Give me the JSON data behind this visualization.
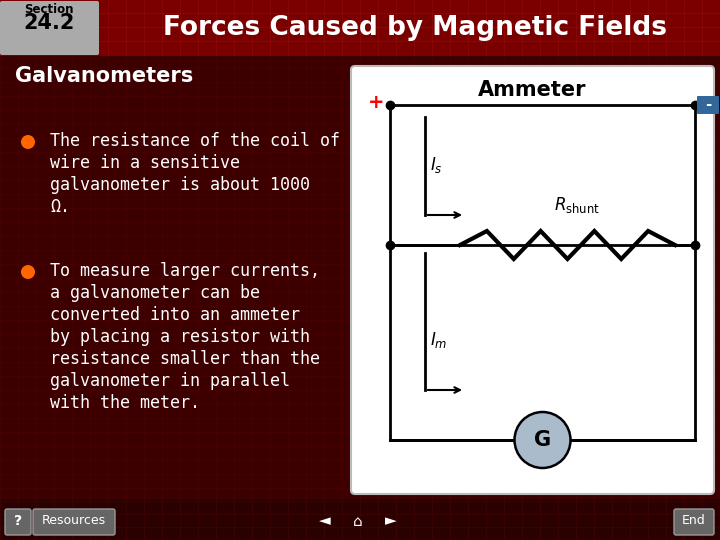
{
  "section_label": "Section",
  "section_number": "24.2",
  "title": "Forces Caused by Magnetic Fields",
  "subtitle": "Galvanometers",
  "bullet1_line1": "The resistance of the coil of",
  "bullet1_line2": "wire in a sensitive",
  "bullet1_line3": "galvanometer is about 1000",
  "bullet1_line4": "Ω.",
  "bullet2_line1": "To measure larger currents,",
  "bullet2_line2": "a galvanometer can be",
  "bullet2_line3": "converted into an ammeter",
  "bullet2_line4": "by placing a resistor with",
  "bullet2_line5": "resistance smaller than the",
  "bullet2_line6": "galvanometer in parallel",
  "bullet2_line7": "with the meter.",
  "bg_color": "#3D0000",
  "header_bg": "#7a0000",
  "title_color": "#FFFFFF",
  "section_box_color": "#aaaaaa",
  "bullet_color": "#FF6600",
  "text_color": "#FFFFFF",
  "diagram_bg": "#FFFFFF",
  "diagram_title": "Ammeter",
  "footer_bar_color": "#2a0000",
  "grid_color": "#6B0000"
}
